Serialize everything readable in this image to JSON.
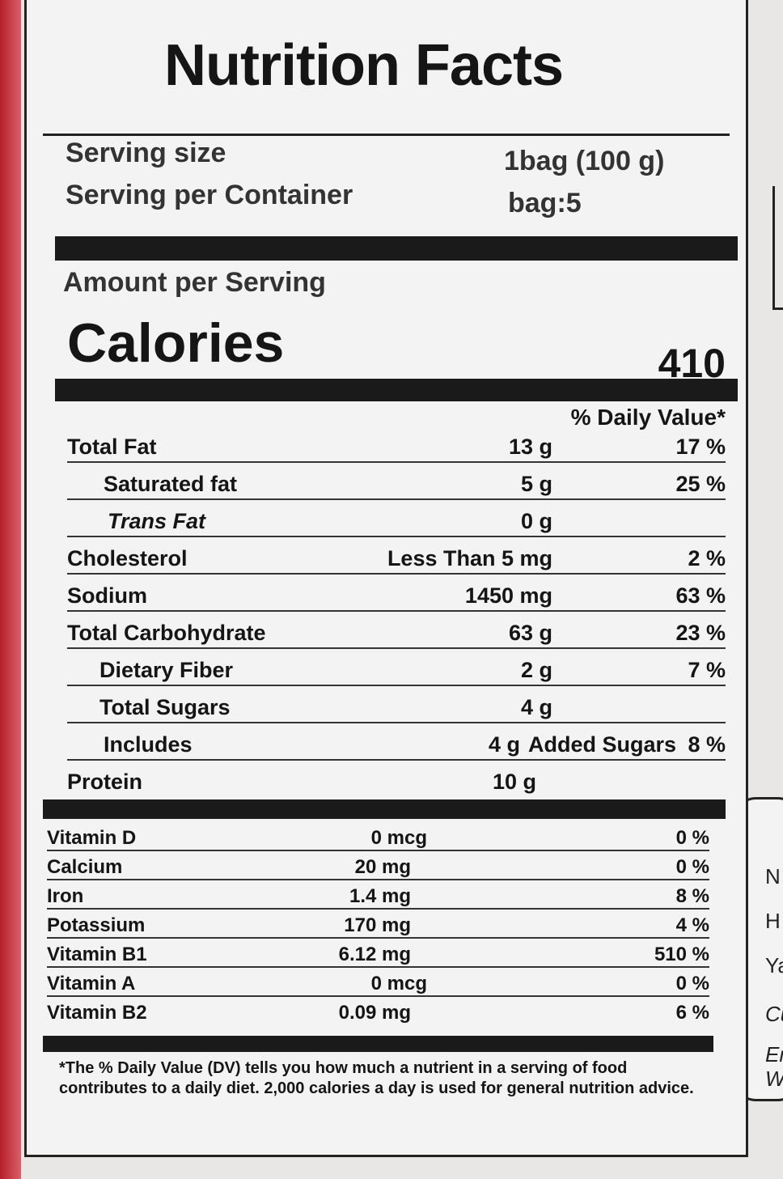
{
  "title": "Nutrition Facts",
  "serving": {
    "size_label": "Serving size",
    "size_value": "1bag (100 g)",
    "per_container_label": "Serving per Container",
    "per_container_value": "bag:5"
  },
  "amount_per_serving": "Amount per Serving",
  "calories": {
    "label": "Calories",
    "value": "410"
  },
  "daily_value_header": "% Daily Value*",
  "nutrients": [
    {
      "name": "Total Fat",
      "amount": "13 g",
      "dv": "17 %"
    },
    {
      "name": "Saturated fat",
      "amount": "5 g",
      "dv": "25 %"
    },
    {
      "name": "Trans Fat",
      "amount": "0 g",
      "dv": ""
    },
    {
      "name": "Cholesterol",
      "amount": "Less Than 5 mg",
      "dv": "2 %"
    },
    {
      "name": "Sodium",
      "amount": "1450 mg",
      "dv": "63 %"
    },
    {
      "name": "Total Carbohydrate",
      "amount": "63 g",
      "dv": "23 %"
    },
    {
      "name": "Dietary Fiber",
      "amount": "2 g",
      "dv": "7 %"
    },
    {
      "name": "Total Sugars",
      "amount": "4 g",
      "dv": ""
    },
    {
      "name": "Includes",
      "amount": "4 g",
      "extra": "Added Sugars",
      "dv": "8 %"
    },
    {
      "name": "Protein",
      "amount": "10 g",
      "dv": ""
    }
  ],
  "vitamins": [
    {
      "name": "Vitamin D",
      "amount": "0 mcg",
      "dv": "0 %"
    },
    {
      "name": "Calcium",
      "amount": "20 mg",
      "dv": "0 %"
    },
    {
      "name": "Iron",
      "amount": "1.4 mg",
      "dv": "8 %"
    },
    {
      "name": "Potassium",
      "amount": "170 mg",
      "dv": "4 %"
    },
    {
      "name": "Vitamin B1",
      "amount": "6.12 mg",
      "dv": "510 %"
    },
    {
      "name": "Vitamin A",
      "amount": "0 mcg",
      "dv": "0 %"
    },
    {
      "name": "Vitamin B2",
      "amount": "0.09 mg",
      "dv": "6 %"
    }
  ],
  "footnote": "*The % Daily Value (DV) tells you how much a nutrient in a serving of food contributes to a daily diet. 2,000 calories a day is used for general nutrition advice.",
  "side_panel_fragments": [
    "N",
    "H",
    "Ya",
    "Cu",
    "Em",
    "We"
  ],
  "colors": {
    "package_red": "#b5202a",
    "label_bg": "#f4f3f3",
    "ink": "#151515"
  }
}
